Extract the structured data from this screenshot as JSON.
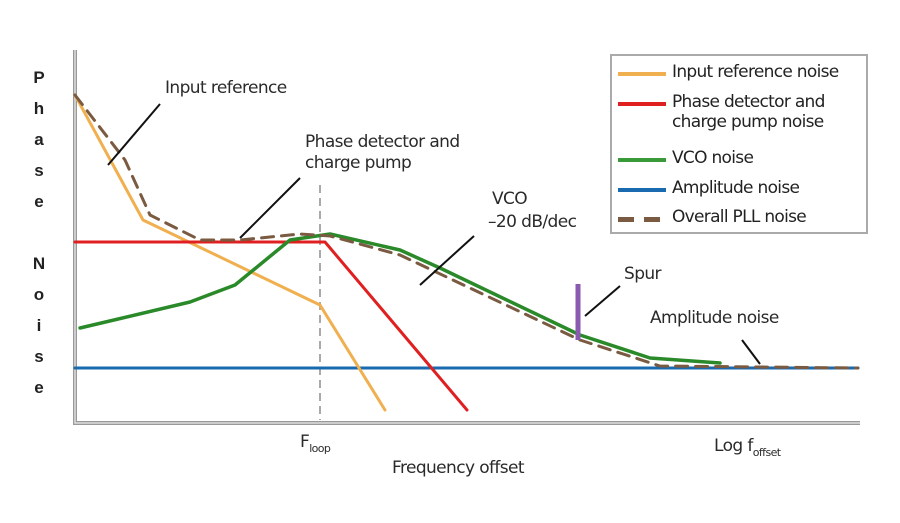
{
  "chart_data": {
    "type": "line",
    "ylabel": "Phase Noise",
    "xlabel": "Frequency offset",
    "x_scale": "log",
    "grid": false,
    "legend_position": "top-right",
    "x_markers": [
      {
        "label": "F",
        "sub": "loop"
      },
      {
        "label": "Log f",
        "sub": "offset"
      }
    ],
    "series": [
      {
        "name": "Input reference noise",
        "color": "#f0b050",
        "style": "solid"
      },
      {
        "name": "Phase detector and charge pump noise",
        "name_lines": [
          "Phase detector and",
          "charge pump noise"
        ],
        "color": "#e02020",
        "style": "solid"
      },
      {
        "name": "VCO noise",
        "color": "#2a8a2a",
        "style": "solid"
      },
      {
        "name": "Amplitude noise",
        "color": "#1a6ab0",
        "style": "solid"
      },
      {
        "name": "Overall PLL noise",
        "color": "#7a5a40",
        "style": "dashed"
      }
    ],
    "annotations": {
      "input_reference": "Input reference",
      "phase_detector": [
        "Phase detector and",
        "charge pump"
      ],
      "vco": [
        "VCO",
        "–20 dB/dec"
      ],
      "spur": "Spur",
      "amplitude": "Amplitude noise"
    },
    "spur_color": "#8a5ab0"
  }
}
